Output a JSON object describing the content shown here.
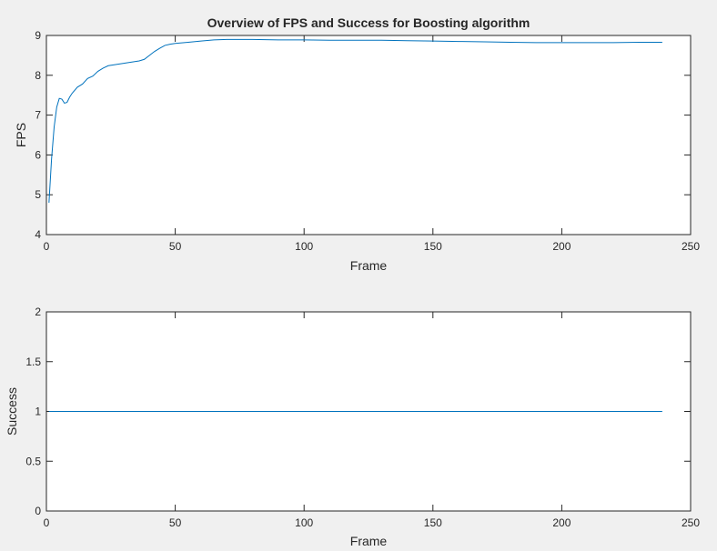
{
  "chart_data": [
    {
      "type": "line",
      "title": "Overview of FPS and Success for Boosting algorithm",
      "xlabel": "Frame",
      "ylabel": "FPS",
      "xlim": [
        0,
        250
      ],
      "ylim": [
        4,
        9
      ],
      "xticks": [
        "0",
        "50",
        "100",
        "150",
        "200",
        "250"
      ],
      "yticks": [
        "4",
        "5",
        "6",
        "7",
        "8",
        "9"
      ],
      "grid": false,
      "series_color": "#0072bd",
      "series": [
        {
          "x": [
            1,
            2,
            3,
            4,
            5,
            6,
            7,
            8,
            9,
            10,
            12,
            14,
            16,
            18,
            20,
            22,
            24,
            26,
            28,
            30,
            32,
            34,
            36,
            38,
            40,
            42,
            44,
            46,
            48,
            50,
            55,
            60,
            65,
            70,
            75,
            80,
            90,
            100,
            110,
            120,
            130,
            140,
            150,
            160,
            170,
            180,
            190,
            200,
            210,
            220,
            230,
            239
          ],
          "y": [
            4.8,
            5.9,
            6.7,
            7.2,
            7.42,
            7.4,
            7.3,
            7.32,
            7.45,
            7.55,
            7.7,
            7.78,
            7.92,
            7.98,
            8.1,
            8.18,
            8.24,
            8.26,
            8.28,
            8.3,
            8.32,
            8.34,
            8.36,
            8.4,
            8.5,
            8.6,
            8.68,
            8.75,
            8.78,
            8.8,
            8.83,
            8.86,
            8.89,
            8.9,
            8.9,
            8.9,
            8.89,
            8.89,
            8.88,
            8.88,
            8.88,
            8.87,
            8.86,
            8.85,
            8.84,
            8.83,
            8.82,
            8.82,
            8.82,
            8.82,
            8.83,
            8.83
          ]
        }
      ]
    },
    {
      "type": "line",
      "title": "",
      "xlabel": "Frame",
      "ylabel": "Success",
      "xlim": [
        0,
        250
      ],
      "ylim": [
        0,
        2
      ],
      "xticks": [
        "0",
        "50",
        "100",
        "150",
        "200",
        "250"
      ],
      "yticks": [
        "0",
        "0.5",
        "1",
        "1.5",
        "2"
      ],
      "grid": false,
      "series_color": "#0072bd",
      "series": [
        {
          "x": [
            1,
            239
          ],
          "y": [
            1,
            1
          ]
        }
      ]
    }
  ]
}
